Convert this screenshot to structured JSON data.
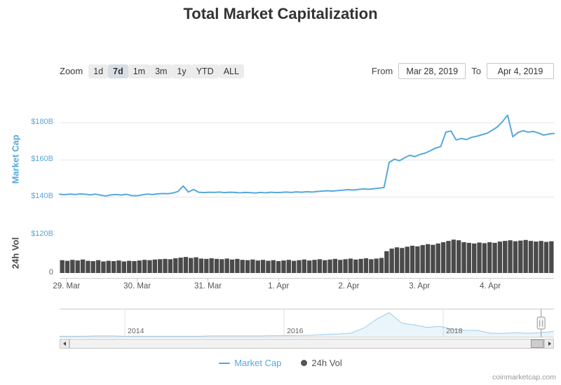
{
  "watermark": "coinmarketcap.com",
  "colors": {
    "market_cap": "#55a8dd",
    "volume": "#4a4a4a",
    "grid": "#e6e6e6",
    "axis_text": "#4a4a4a",
    "muted_text": "#999999"
  },
  "toolbar": {
    "zoom_label": "Zoom",
    "zoom_buttons": [
      {
        "label": "1d",
        "selected": false
      },
      {
        "label": "7d",
        "selected": true
      },
      {
        "label": "1m",
        "selected": false
      },
      {
        "label": "3m",
        "selected": false
      },
      {
        "label": "1y",
        "selected": false
      },
      {
        "label": "YTD",
        "selected": false
      },
      {
        "label": "ALL",
        "selected": false
      }
    ],
    "from_label": "From",
    "from_value": "Mar 28, 2019",
    "to_label": "To",
    "to_value": "Apr 4, 2019"
  },
  "chart_data": {
    "type": "line+bar",
    "title": "Total Market Capitalization",
    "x_range": [
      "Mar 28, 2019",
      "Apr 4, 2019"
    ],
    "x_tick_labels": [
      "29. Mar",
      "30. Mar",
      "31. Mar",
      "1. Apr",
      "2. Apr",
      "3. Apr",
      "4. Apr"
    ],
    "x_tick_positions": [
      0.014,
      0.157,
      0.3,
      0.443,
      0.585,
      0.728,
      0.871
    ],
    "market_cap": {
      "type": "line",
      "name": "Market Cap",
      "axis_title": "Market Cap",
      "unit": "USD billions",
      "ylim": [
        138,
        192
      ],
      "y_ticks": [
        {
          "value": 140,
          "label": "$140B"
        },
        {
          "value": 160,
          "label": "$160B"
        },
        {
          "value": 180,
          "label": "$180B"
        }
      ],
      "values": [
        141.3,
        141.1,
        141.4,
        141.2,
        141.5,
        141.3,
        141.0,
        141.4,
        140.8,
        140.4,
        141.0,
        141.2,
        140.9,
        141.3,
        140.6,
        140.5,
        141.0,
        141.4,
        141.2,
        141.5,
        141.7,
        141.6,
        142.0,
        142.8,
        145.8,
        142.5,
        143.9,
        142.4,
        142.2,
        142.4,
        142.3,
        142.5,
        142.2,
        142.4,
        142.3,
        142.1,
        142.3,
        142.2,
        142.0,
        142.3,
        142.1,
        142.4,
        142.2,
        142.3,
        142.5,
        142.3,
        142.6,
        142.4,
        142.7,
        142.5,
        142.8,
        143.0,
        143.2,
        143.0,
        143.3,
        143.5,
        143.8,
        143.6,
        143.9,
        144.2,
        144.0,
        144.3,
        144.6,
        145.0,
        158.5,
        160.2,
        159.4,
        161.0,
        162.3,
        161.6,
        162.8,
        163.5,
        164.8,
        166.2,
        167.0,
        174.8,
        175.4,
        170.6,
        171.4,
        170.8,
        172.0,
        172.6,
        173.4,
        174.2,
        175.8,
        177.6,
        180.5,
        183.9,
        172.3,
        174.6,
        175.6,
        174.8,
        175.2,
        174.3,
        173.2,
        173.8,
        174.1
      ]
    },
    "volume": {
      "type": "bar",
      "name": "24h Vol",
      "axis_title": "24h Vol",
      "unit": "USD billions",
      "ylim": [
        0,
        132
      ],
      "y_ticks": [
        {
          "value": 120,
          "label": "$120B",
          "color": "#55a8dd"
        },
        {
          "value": 0,
          "label": "0",
          "color": "#666666"
        }
      ],
      "values": [
        40,
        38,
        41,
        39,
        42,
        38,
        37,
        40,
        36,
        38,
        37,
        39,
        36,
        38,
        37,
        39,
        41,
        40,
        42,
        43,
        44,
        43,
        46,
        48,
        50,
        47,
        49,
        45,
        44,
        46,
        44,
        43,
        45,
        42,
        44,
        41,
        40,
        42,
        39,
        41,
        38,
        40,
        37,
        39,
        41,
        38,
        40,
        42,
        39,
        41,
        43,
        40,
        42,
        44,
        41,
        43,
        45,
        42,
        44,
        46,
        43,
        45,
        47,
        68,
        76,
        80,
        78,
        82,
        85,
        83,
        87,
        90,
        88,
        92,
        96,
        100,
        104,
        102,
        96,
        94,
        92,
        95,
        93,
        96,
        94,
        98,
        100,
        102,
        99,
        101,
        103,
        100,
        98,
        100,
        97,
        99
      ]
    }
  },
  "navigator": {
    "year_ticks": [
      {
        "label": "2014",
        "pos": 0.132
      },
      {
        "label": "2016",
        "pos": 0.454
      },
      {
        "label": "2018",
        "pos": 0.776
      }
    ],
    "series": [
      0.01,
      0.01,
      0.01,
      0.02,
      0.02,
      0.01,
      0.01,
      0.01,
      0.01,
      0.01,
      0.01,
      0.01,
      0.02,
      0.02,
      0.02,
      0.02,
      0.02,
      0.03,
      0.03,
      0.04,
      0.05,
      0.08,
      0.1,
      0.14,
      0.35,
      0.72,
      1.0,
      0.55,
      0.48,
      0.38,
      0.42,
      0.3,
      0.26,
      0.25,
      0.13,
      0.13,
      0.15,
      0.13,
      0.16,
      0.21
    ],
    "handle_pos": 0.974,
    "scroll_pos": 1
  },
  "legend": {
    "items": [
      {
        "label": "Market Cap",
        "marker": "line",
        "color": "#55a8dd"
      },
      {
        "label": "24h Vol",
        "marker": "circle",
        "color": "#555555"
      }
    ]
  }
}
